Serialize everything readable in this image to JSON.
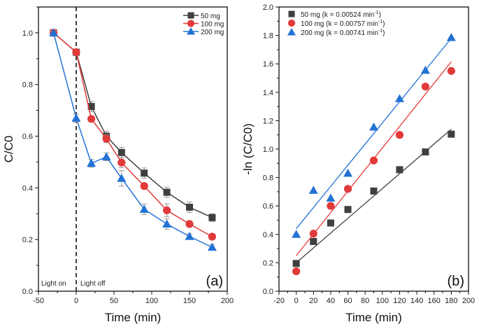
{
  "colors": {
    "50mg": "#3f3f3f",
    "100mg": "#e23a3a",
    "200mg": "#2272d6"
  },
  "chart_data": [
    {
      "type": "line",
      "panel_label": "(a)",
      "xlabel": "Time (min)",
      "ylabel": "C/C0",
      "xlim": [
        -50,
        200
      ],
      "ylim": [
        0,
        1.1
      ],
      "xticks": [
        "-50",
        "0",
        "50",
        "100",
        "150",
        "200"
      ],
      "yticks": [
        "0.0",
        "0.2",
        "0.4",
        "0.6",
        "0.8",
        "1.0"
      ],
      "legend_position": "top-right",
      "annotations": {
        "left": "Light on",
        "right": "Light off",
        "divider_x": 0
      },
      "x": [
        -30,
        0,
        20,
        40,
        60,
        90,
        120,
        150,
        180
      ],
      "series": [
        {
          "name": "50 mg",
          "marker": "square",
          "values": [
            1.0,
            0.925,
            0.715,
            0.6,
            0.537,
            0.457,
            0.383,
            0.325,
            0.285
          ],
          "errors": [
            0.005,
            0.01,
            0.02,
            0.02,
            0.02,
            0.02,
            0.02,
            0.02,
            0.015
          ]
        },
        {
          "name": "100 mg",
          "marker": "circle",
          "values": [
            1.0,
            0.925,
            0.667,
            0.59,
            0.498,
            0.407,
            0.313,
            0.26,
            0.211
          ],
          "errors": [
            0.005,
            0.01,
            0.01,
            0.015,
            0.02,
            0.01,
            0.025,
            0.01,
            0.01
          ]
        },
        {
          "name": "200 mg",
          "marker": "triangle",
          "values": [
            1.0,
            0.67,
            0.495,
            0.52,
            0.437,
            0.317,
            0.26,
            0.212,
            0.17
          ],
          "errors": [
            0.005,
            0.015,
            0.015,
            0.015,
            0.03,
            0.02,
            0.02,
            0.01,
            0.01
          ]
        }
      ]
    },
    {
      "type": "scatter",
      "panel_label": "(b)",
      "xlabel": "Time (min)",
      "ylabel": "-ln (C/C0)",
      "xlim": [
        -20,
        200
      ],
      "ylim": [
        0,
        2.0
      ],
      "xticks": [
        "-20",
        "0",
        "20",
        "40",
        "60",
        "80",
        "100",
        "120",
        "140",
        "160",
        "180",
        "200"
      ],
      "yticks": [
        "0.0",
        "0.2",
        "0.4",
        "0.6",
        "0.8",
        "1.0",
        "1.2",
        "1.4",
        "1.6",
        "1.8",
        "2.0"
      ],
      "legend_position": "top-left",
      "x": [
        0,
        20,
        40,
        60,
        90,
        120,
        150,
        180
      ],
      "series": [
        {
          "name": "50 mg (k = 0.00524 min-1)",
          "label": "50 mg (k = 0.00524 min",
          "marker": "square",
          "values": [
            0.195,
            0.35,
            0.48,
            0.575,
            0.705,
            0.855,
            0.98,
            1.105
          ],
          "fit": [
            0.2,
            1.14
          ]
        },
        {
          "name": "100 mg (k = 0.00757 min-1)",
          "label": "100 mg (k = 0.00757 min",
          "marker": "circle",
          "values": [
            0.14,
            0.405,
            0.6,
            0.72,
            0.92,
            1.1,
            1.44,
            1.55
          ],
          "fit": [
            0.25,
            1.615
          ]
        },
        {
          "name": "200 mg (k = 0.00741 min-1)",
          "label": "200 mg (k = 0.00741 min",
          "marker": "triangle",
          "values": [
            0.4,
            0.71,
            0.655,
            0.83,
            1.155,
            1.355,
            1.555,
            1.785
          ],
          "fit": [
            0.44,
            1.78
          ]
        }
      ]
    }
  ]
}
